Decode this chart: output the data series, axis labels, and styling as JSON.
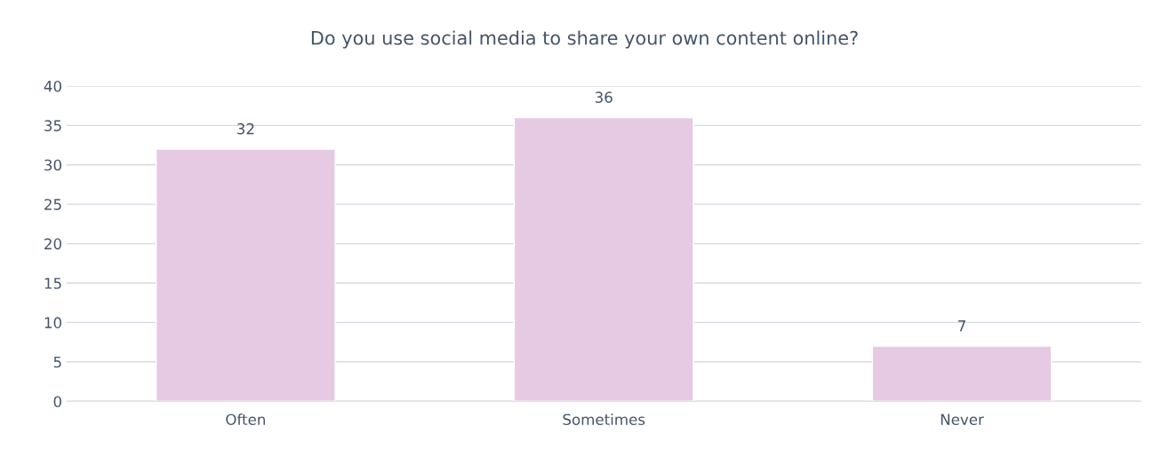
{
  "chart_data": {
    "type": "bar",
    "title": "Do you use social media to share your own content online?",
    "categories": [
      "Often",
      "Sometimes",
      "Never"
    ],
    "values": [
      32,
      36,
      7
    ],
    "color": "#e6c9e2",
    "ylim": [
      0,
      40
    ],
    "yticks": [
      0,
      5,
      10,
      15,
      20,
      25,
      30,
      35,
      40
    ],
    "grid": "y",
    "data_labels": true
  }
}
